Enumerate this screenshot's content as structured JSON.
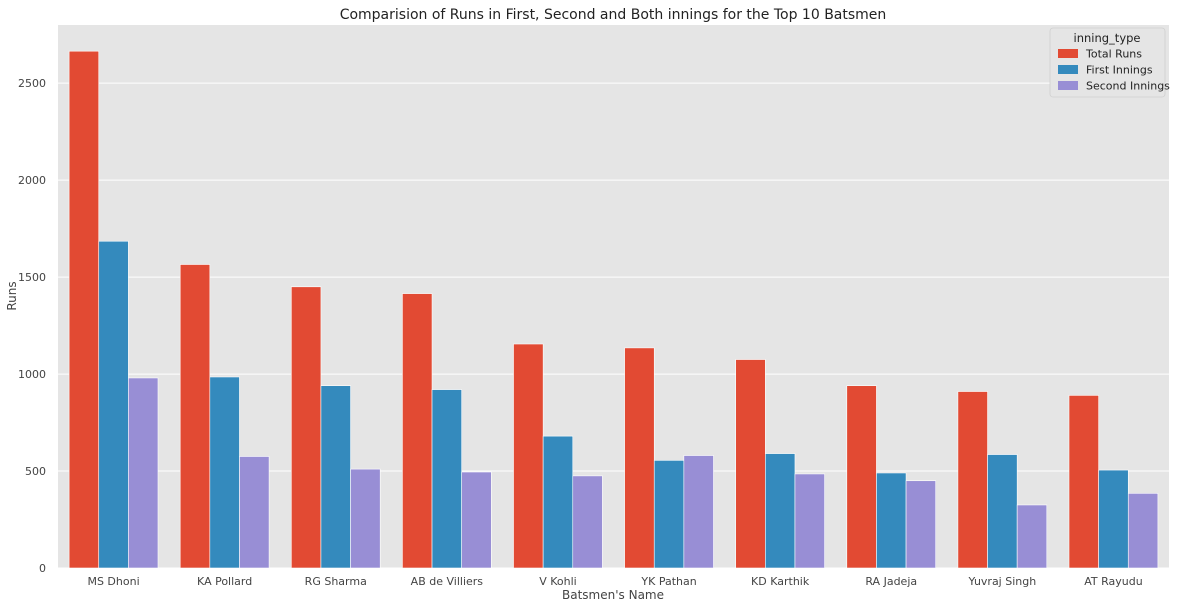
{
  "chart_data": {
    "type": "bar",
    "title": "Comparision of Runs in First, Second and Both innings for the Top 10 Batsmen",
    "xlabel": "Batsmen's Name",
    "ylabel": "Runs",
    "ylim": [
      0,
      2800
    ],
    "yticks": [
      0,
      500,
      1000,
      1500,
      2000,
      2500
    ],
    "grid": true,
    "legend_title": "inning_type",
    "legend_position": "top-right",
    "categories": [
      "MS Dhoni",
      "KA Pollard",
      "RG Sharma",
      "AB de Villiers",
      "V Kohli",
      "YK Pathan",
      "KD Karthik",
      "RA Jadeja",
      "Yuvraj Singh",
      "AT Rayudu"
    ],
    "series": [
      {
        "name": "Total Runs",
        "color": "#e24a33",
        "values": [
          2665,
          1565,
          1450,
          1415,
          1155,
          1135,
          1075,
          940,
          910,
          890
        ]
      },
      {
        "name": "First Innings",
        "color": "#348abd",
        "values": [
          1685,
          985,
          940,
          920,
          680,
          555,
          590,
          490,
          585,
          505
        ]
      },
      {
        "name": "Second Innings",
        "color": "#988ed5",
        "values": [
          980,
          575,
          510,
          495,
          475,
          580,
          485,
          450,
          325,
          385
        ]
      }
    ]
  }
}
